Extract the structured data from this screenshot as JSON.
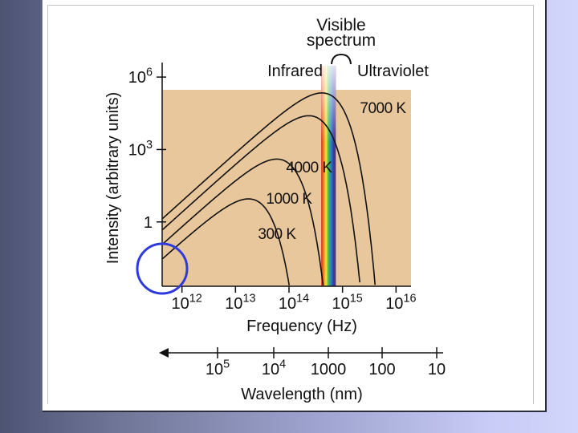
{
  "chart_data": {
    "type": "line",
    "title": "Visible spectrum",
    "title_line1": "Visible",
    "title_line2": "spectrum",
    "band_labels": {
      "infrared": "Infrared",
      "ultraviolet": "Ultraviolet"
    },
    "xlabel": "Frequency (Hz)",
    "ylabel": "Intensity (arbitrary units)",
    "x_scale": "log",
    "y_scale": "log",
    "xlim": [
      100000000000.0,
      1e+17
    ],
    "ylim": [
      0.01,
      10000000.0
    ],
    "x_ticks": [
      {
        "value": 1000000000000.0,
        "base": "10",
        "exp": "12"
      },
      {
        "value": 10000000000000.0,
        "base": "10",
        "exp": "13"
      },
      {
        "value": 100000000000000.0,
        "base": "10",
        "exp": "14"
      },
      {
        "value": 1000000000000000.0,
        "base": "10",
        "exp": "15"
      },
      {
        "value": 1e+16,
        "base": "10",
        "exp": "16"
      }
    ],
    "y_ticks": [
      {
        "value": 1000000.0,
        "base": "10",
        "exp": "6"
      },
      {
        "value": 1000.0,
        "base": "10",
        "exp": "3"
      },
      {
        "value": 1,
        "base": "1",
        "exp": ""
      }
    ],
    "wavelength_axis": {
      "label": "Wavelength (nm)",
      "ticks": [
        {
          "value_nm": 100000.0,
          "base": "10",
          "exp": "5"
        },
        {
          "value_nm": 10000.0,
          "base": "10",
          "exp": "4"
        },
        {
          "value_nm": 1000,
          "base": "1000",
          "exp": ""
        },
        {
          "value_nm": 100,
          "base": "100",
          "exp": ""
        },
        {
          "value_nm": 10,
          "base": "10",
          "exp": ""
        }
      ]
    },
    "visible_band_hz": [
      400000000000000.0,
      750000000000000.0
    ],
    "series": [
      {
        "name": "7000K",
        "label": "7000 K",
        "temperature_K": 7000,
        "peak_frequency_hz": 410000000000000.0,
        "peak_intensity": 220000.0
      },
      {
        "name": "4000K",
        "label": "4000 K",
        "temperature_K": 4000,
        "peak_frequency_hz": 235000000000000.0,
        "peak_intensity": 25000.0
      },
      {
        "name": "1000K",
        "label": "1000 K",
        "temperature_K": 1000,
        "peak_frequency_hz": 59000000000000.0,
        "peak_intensity": 400.0
      },
      {
        "name": "300K",
        "label": "300 K",
        "temperature_K": 300,
        "peak_frequency_hz": 17500000000000.0,
        "peak_intensity": 9.0
      }
    ],
    "annotation": {
      "type": "circle",
      "color": "#2e3adb",
      "around": "low-frequency end of curves"
    },
    "colors": {
      "plot_background": "#e9c79c",
      "line": "#111111",
      "annotation": "#2e3adb"
    }
  }
}
